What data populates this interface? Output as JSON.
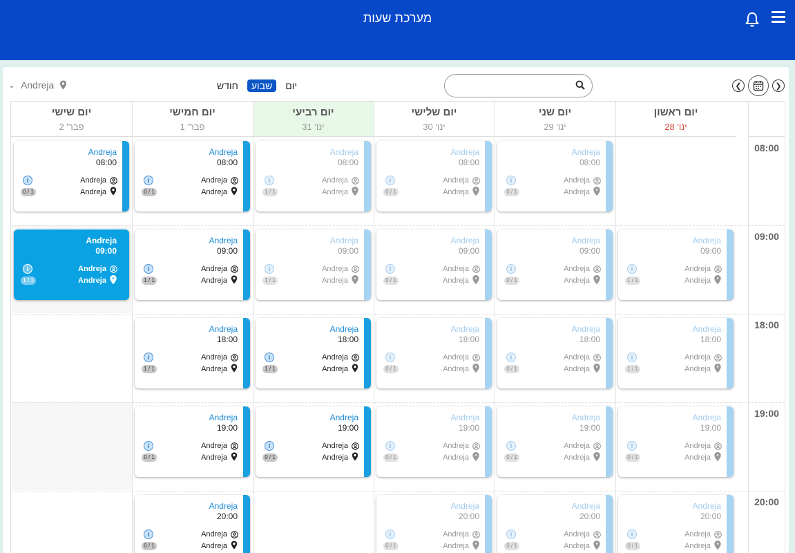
{
  "header": {
    "title": "מערכת שעות"
  },
  "toolbar": {
    "views": [
      {
        "label": "יום"
      },
      {
        "label": "שבוע"
      },
      {
        "label": "חודש"
      }
    ],
    "location_filter": "Andreja",
    "search_placeholder": ""
  },
  "days": [
    {
      "name": "יום ראשון",
      "date": "ינו' 28"
    },
    {
      "name": "יום שני",
      "date": "ינו' 29"
    },
    {
      "name": "יום שלישי",
      "date": "ינו' 30"
    },
    {
      "name": "יום רביעי",
      "date": "ינו' 31"
    },
    {
      "name": "יום חמישי",
      "date": "פבר' 1"
    },
    {
      "name": "יום שישי",
      "date": "פבר' 2"
    }
  ],
  "times": [
    "08:00",
    "09:00",
    "18:00",
    "19:00",
    "20:00"
  ],
  "events": [
    {
      "day": 1,
      "time": "08:00",
      "title": "Andreja",
      "person": "Andreja",
      "location": "Andreja",
      "count": "0 / 1",
      "state": "faded"
    },
    {
      "day": 2,
      "time": "08:00",
      "title": "Andreja",
      "person": "Andreja",
      "location": "Andreja",
      "count": "0 / 1",
      "state": "faded"
    },
    {
      "day": 3,
      "time": "08:00",
      "title": "Andreja",
      "person": "Andreja",
      "location": "Andreja",
      "count": "1 / 1",
      "state": "faded"
    },
    {
      "day": 4,
      "time": "08:00",
      "title": "Andreja",
      "person": "Andreja",
      "location": "Andreja",
      "count": "0 / 1",
      "state": "normal"
    },
    {
      "day": 5,
      "time": "08:00",
      "title": "Andreja",
      "person": "Andreja",
      "location": "Andreja",
      "count": "0 / 1",
      "state": "normal"
    },
    {
      "day": 0,
      "time": "09:00",
      "title": "Andreja",
      "person": "Andreja",
      "location": "Andreja",
      "count": "1 / 1",
      "state": "faded"
    },
    {
      "day": 1,
      "time": "09:00",
      "title": "Andreja",
      "person": "Andreja",
      "location": "Andreja",
      "count": "0 / 1",
      "state": "faded"
    },
    {
      "day": 2,
      "time": "09:00",
      "title": "Andreja",
      "person": "Andreja",
      "location": "Andreja",
      "count": "0 / 1",
      "state": "faded"
    },
    {
      "day": 3,
      "time": "09:00",
      "title": "Andreja",
      "person": "Andreja",
      "location": "Andreja",
      "count": "1 / 1",
      "state": "faded"
    },
    {
      "day": 4,
      "time": "09:00",
      "title": "Andreja",
      "person": "Andreja",
      "location": "Andreja",
      "count": "1 / 1",
      "state": "normal"
    },
    {
      "day": 5,
      "time": "09:00",
      "title": "Andreja",
      "person": "Andreja",
      "location": "Andreja",
      "count": "1 / 1",
      "state": "selected"
    },
    {
      "day": 0,
      "time": "18:00",
      "title": "Andreja",
      "person": "Andreja",
      "location": "Andreja",
      "count": "1 / 1",
      "state": "faded"
    },
    {
      "day": 1,
      "time": "18:00",
      "title": "Andreja",
      "person": "Andreja",
      "location": "Andreja",
      "count": "0 / 1",
      "state": "faded"
    },
    {
      "day": 2,
      "time": "18:00",
      "title": "Andreja",
      "person": "Andreja",
      "location": "Andreja",
      "count": "0 / 1",
      "state": "faded"
    },
    {
      "day": 3,
      "time": "18:00",
      "title": "Andreja",
      "person": "Andreja",
      "location": "Andreja",
      "count": "1 / 1",
      "state": "normal"
    },
    {
      "day": 4,
      "time": "18:00",
      "title": "Andreja",
      "person": "Andreja",
      "location": "Andreja",
      "count": "1 / 1",
      "state": "normal"
    },
    {
      "day": 0,
      "time": "19:00",
      "title": "Andreja",
      "person": "Andreja",
      "location": "Andreja",
      "count": "0 / 1",
      "state": "faded"
    },
    {
      "day": 1,
      "time": "19:00",
      "title": "Andreja",
      "person": "Andreja",
      "location": "Andreja",
      "count": "0 / 1",
      "state": "faded"
    },
    {
      "day": 2,
      "time": "19:00",
      "title": "Andreja",
      "person": "Andreja",
      "location": "Andreja",
      "count": "0 / 1",
      "state": "faded"
    },
    {
      "day": 3,
      "time": "19:00",
      "title": "Andreja",
      "person": "Andreja",
      "location": "Andreja",
      "count": "0 / 1",
      "state": "normal"
    },
    {
      "day": 4,
      "time": "19:00",
      "title": "Andreja",
      "person": "Andreja",
      "location": "Andreja",
      "count": "0 / 1",
      "state": "normal"
    },
    {
      "day": 0,
      "time": "20:00",
      "title": "Andreja",
      "person": "Andreja",
      "location": "Andreja",
      "count": "0 / 1",
      "state": "faded"
    },
    {
      "day": 1,
      "time": "20:00",
      "title": "Andreja",
      "person": "Andreja",
      "location": "Andreja",
      "count": "0 / 1",
      "state": "faded"
    },
    {
      "day": 2,
      "time": "20:00",
      "title": "Andreja",
      "person": "Andreja",
      "location": "Andreja",
      "count": "0 / 1",
      "state": "faded"
    },
    {
      "day": 4,
      "time": "20:00",
      "title": "Andreja",
      "person": "Andreja",
      "location": "Andreja",
      "count": "0 / 1",
      "state": "normal"
    }
  ],
  "colors": {
    "topbar": "#0748c9",
    "accent": "#1aa0e0",
    "today_header": "#e8f8e8",
    "sunday_date": "#d04a3a"
  }
}
